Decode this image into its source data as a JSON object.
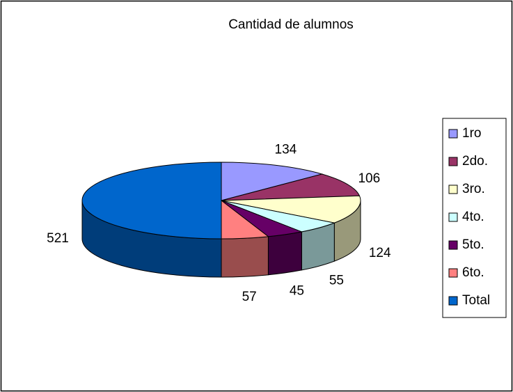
{
  "chart_data": {
    "type": "pie",
    "title": "Cantidad de alumnos",
    "categories": [
      "1ro",
      "2do.",
      "3ro.",
      "4to.",
      "5to.",
      "6to.",
      "Total"
    ],
    "values": [
      134,
      106,
      124,
      55,
      45,
      57,
      521
    ],
    "colors": [
      "#9999ff",
      "#993366",
      "#ffffcc",
      "#ccffff",
      "#660066",
      "#ff8080",
      "#0066cc"
    ],
    "legend": "right"
  }
}
